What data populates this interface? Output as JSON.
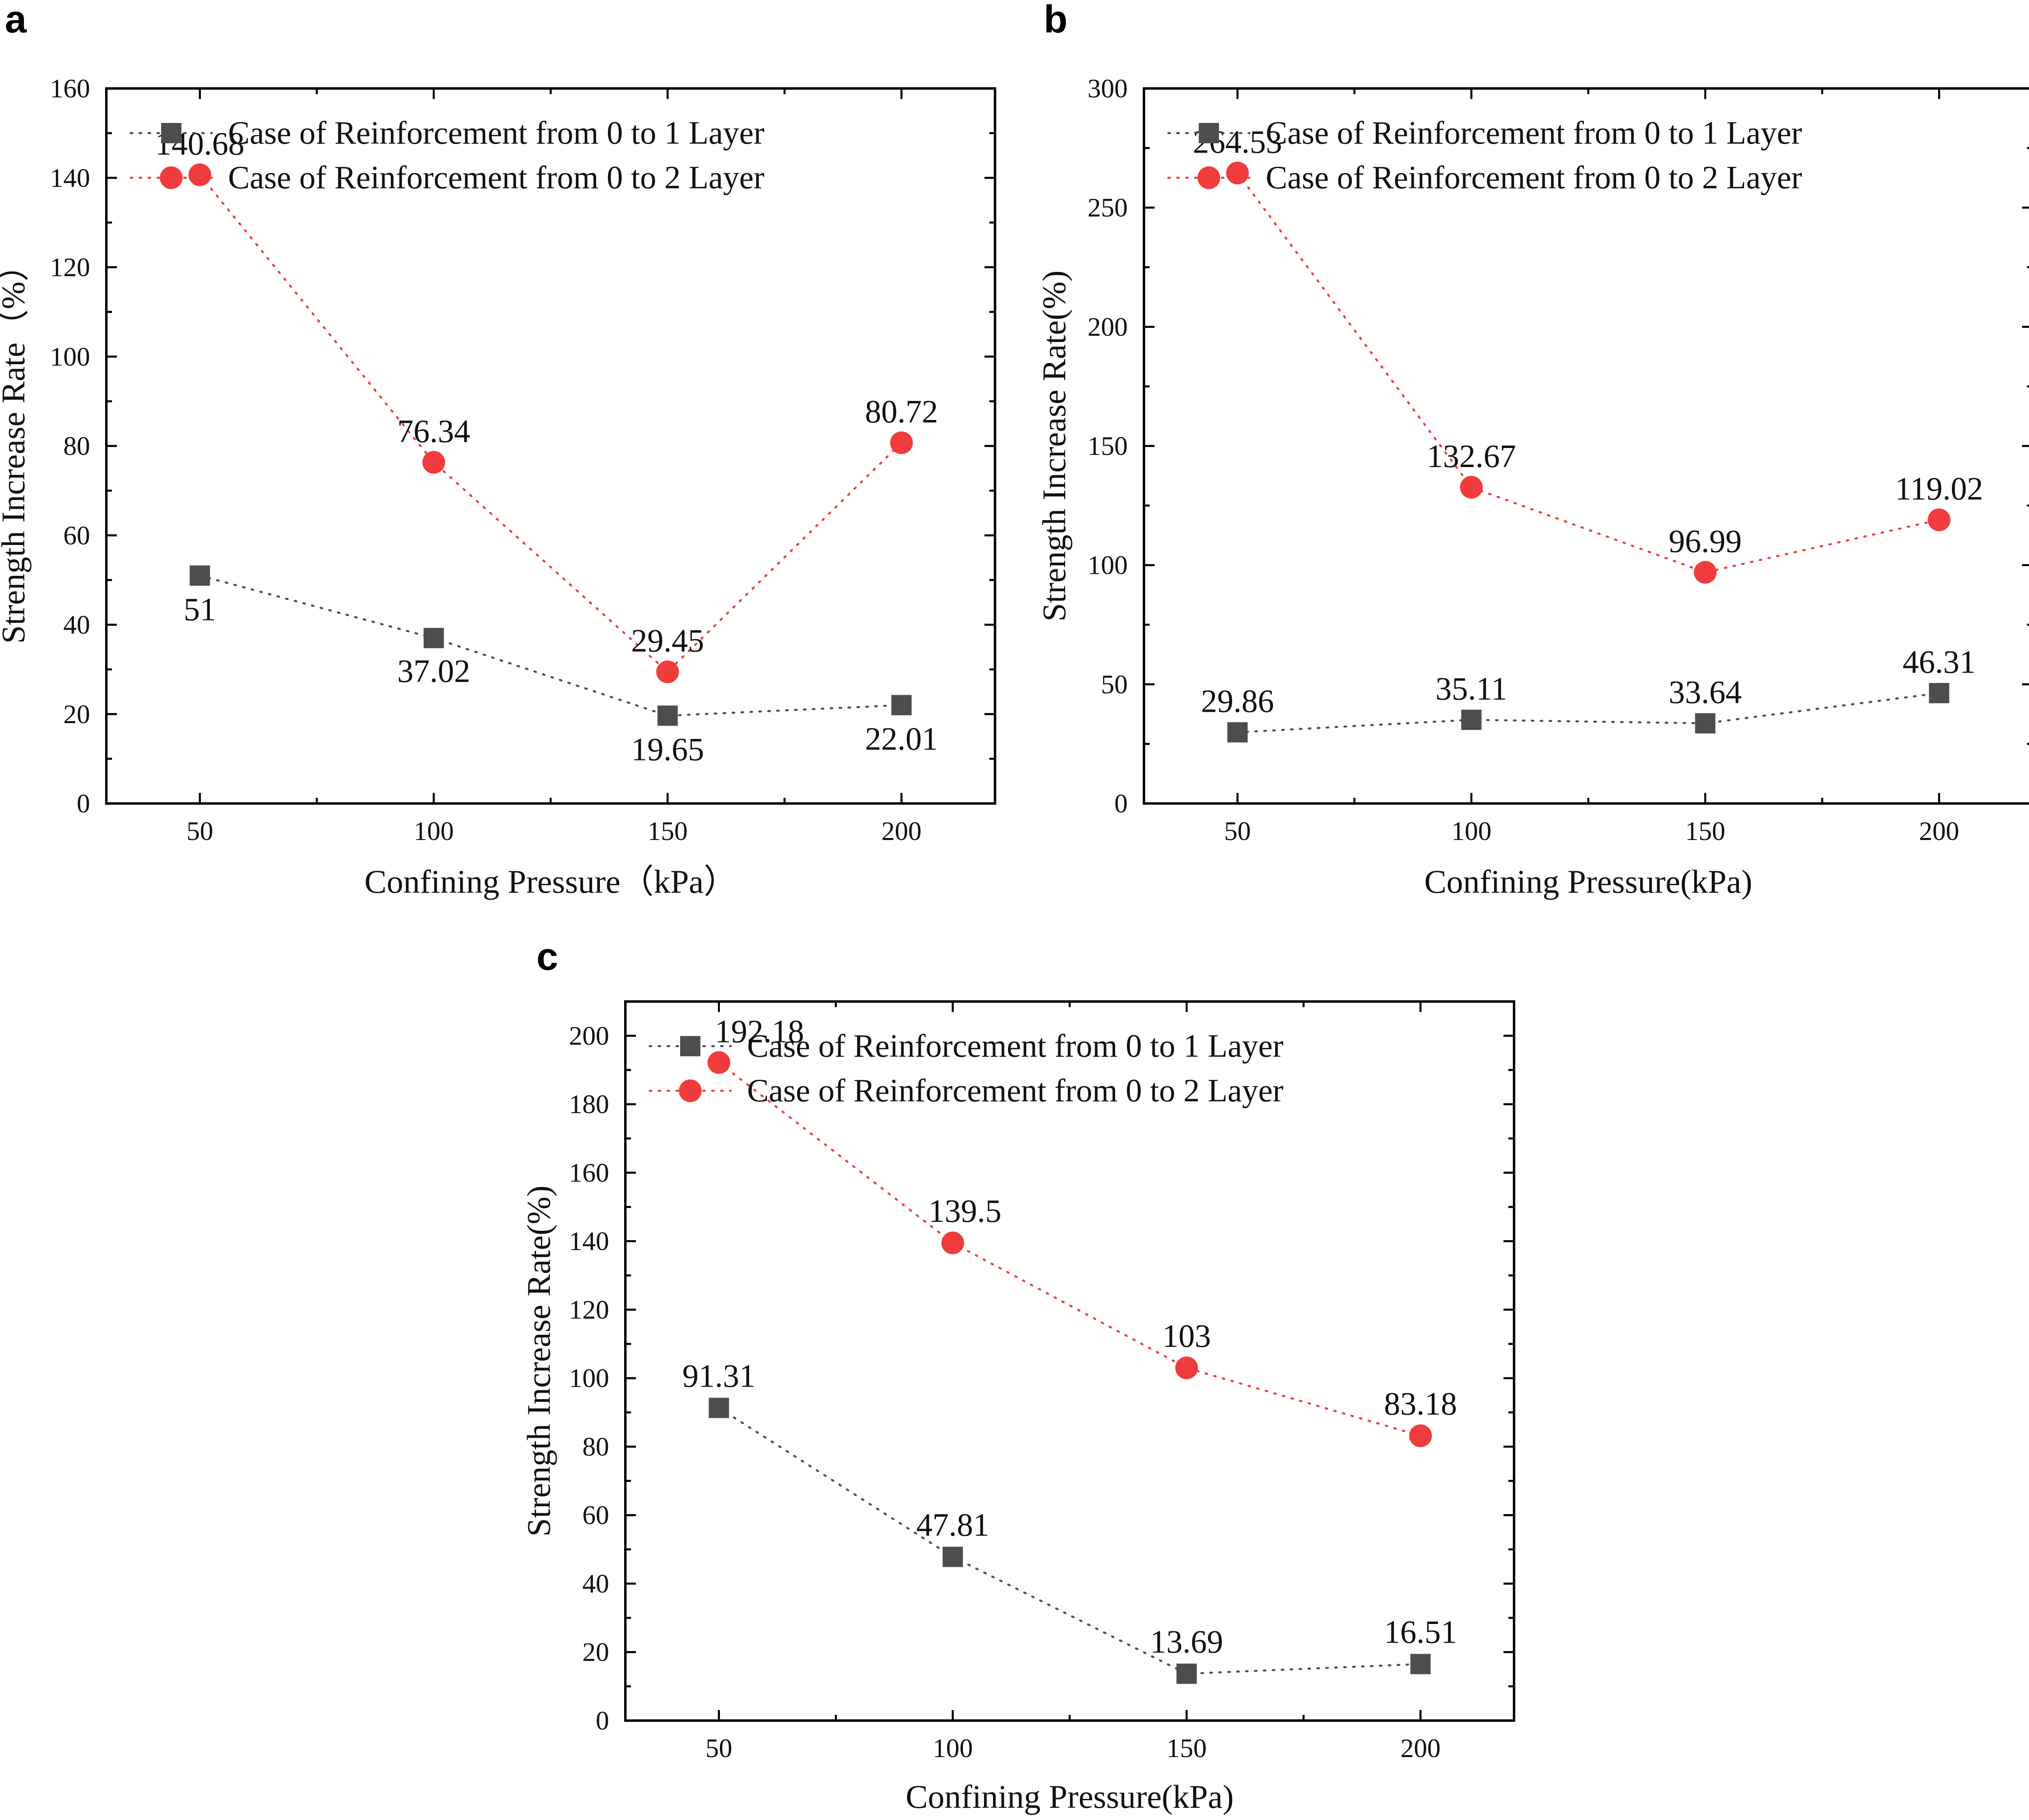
{
  "figure": {
    "panels": [
      "a",
      "b",
      "c"
    ]
  },
  "chart_data": [
    {
      "panel": "a",
      "type": "line",
      "xlabel": "Confining Pressure（kPa）",
      "ylabel": "Strength Increase Rate（%）",
      "x": [
        50,
        100,
        150,
        200
      ],
      "xticks": [
        "50",
        "100",
        "150",
        "200"
      ],
      "xlim": [
        30,
        220
      ],
      "ylim": [
        0,
        160
      ],
      "yticks": [
        0,
        20,
        40,
        60,
        80,
        100,
        120,
        140,
        160
      ],
      "grid": false,
      "legend_position": "top-right",
      "series": [
        {
          "name": "Case of Reinforcement from 0 to 1 Layer",
          "marker": "square",
          "color": "#4d4d4d",
          "values": [
            51,
            37.02,
            19.65,
            22.01
          ],
          "labels": [
            "51",
            "37.02",
            "19.65",
            "22.01"
          ]
        },
        {
          "name": "Case of Reinforcement from 0 to 2 Layer",
          "marker": "circle",
          "color": "#f03c3c",
          "values": [
            140.68,
            76.34,
            29.45,
            80.72
          ],
          "labels": [
            "140.68",
            "76.34",
            "29.45",
            "80.72"
          ]
        }
      ]
    },
    {
      "panel": "b",
      "type": "line",
      "xlabel": "Confining Pressure(kPa)",
      "ylabel": "Strength Increase Rate(%)",
      "x": [
        50,
        100,
        150,
        200
      ],
      "xticks": [
        "50",
        "100",
        "150",
        "200"
      ],
      "xlim": [
        30,
        220
      ],
      "ylim": [
        0,
        300
      ],
      "yticks": [
        0,
        50,
        100,
        150,
        200,
        250,
        300
      ],
      "grid": false,
      "legend_position": "top-right",
      "series": [
        {
          "name": "Case of Reinforcement from 0 to 1 Layer",
          "marker": "square",
          "color": "#4d4d4d",
          "values": [
            29.86,
            35.11,
            33.64,
            46.31
          ],
          "labels": [
            "29.86",
            "35.11",
            "33.64",
            "46.31"
          ]
        },
        {
          "name": "Case of Reinforcement from 0 to 2 Layer",
          "marker": "circle",
          "color": "#f03c3c",
          "values": [
            264.53,
            132.67,
            96.99,
            119.02
          ],
          "labels": [
            "264.53",
            "132.67",
            "96.99",
            "119.02"
          ]
        }
      ]
    },
    {
      "panel": "c",
      "type": "line",
      "xlabel": "Confining Pressure(kPa)",
      "ylabel": "Strength Increase Rate(%)",
      "x": [
        50,
        100,
        150,
        200
      ],
      "xticks": [
        "50",
        "100",
        "150",
        "200"
      ],
      "xlim": [
        30,
        220
      ],
      "ylim": [
        0,
        210
      ],
      "yticks": [
        0,
        20,
        40,
        60,
        80,
        100,
        120,
        140,
        160,
        180,
        200
      ],
      "grid": false,
      "legend_position": "top-right",
      "series": [
        {
          "name": "Case of Reinforcement from 0 to 1 Layer",
          "marker": "square",
          "color": "#4d4d4d",
          "values": [
            91.31,
            47.81,
            13.69,
            16.51
          ],
          "labels": [
            "91.31",
            "47.81",
            "13.69",
            "16.51"
          ]
        },
        {
          "name": "Case of Reinforcement from 0 to 2 Layer",
          "marker": "circle",
          "color": "#f03c3c",
          "values": [
            192.18,
            139.5,
            103,
            83.18
          ],
          "labels": [
            "192.18",
            "139.5",
            "103",
            "83.18"
          ]
        }
      ]
    }
  ]
}
